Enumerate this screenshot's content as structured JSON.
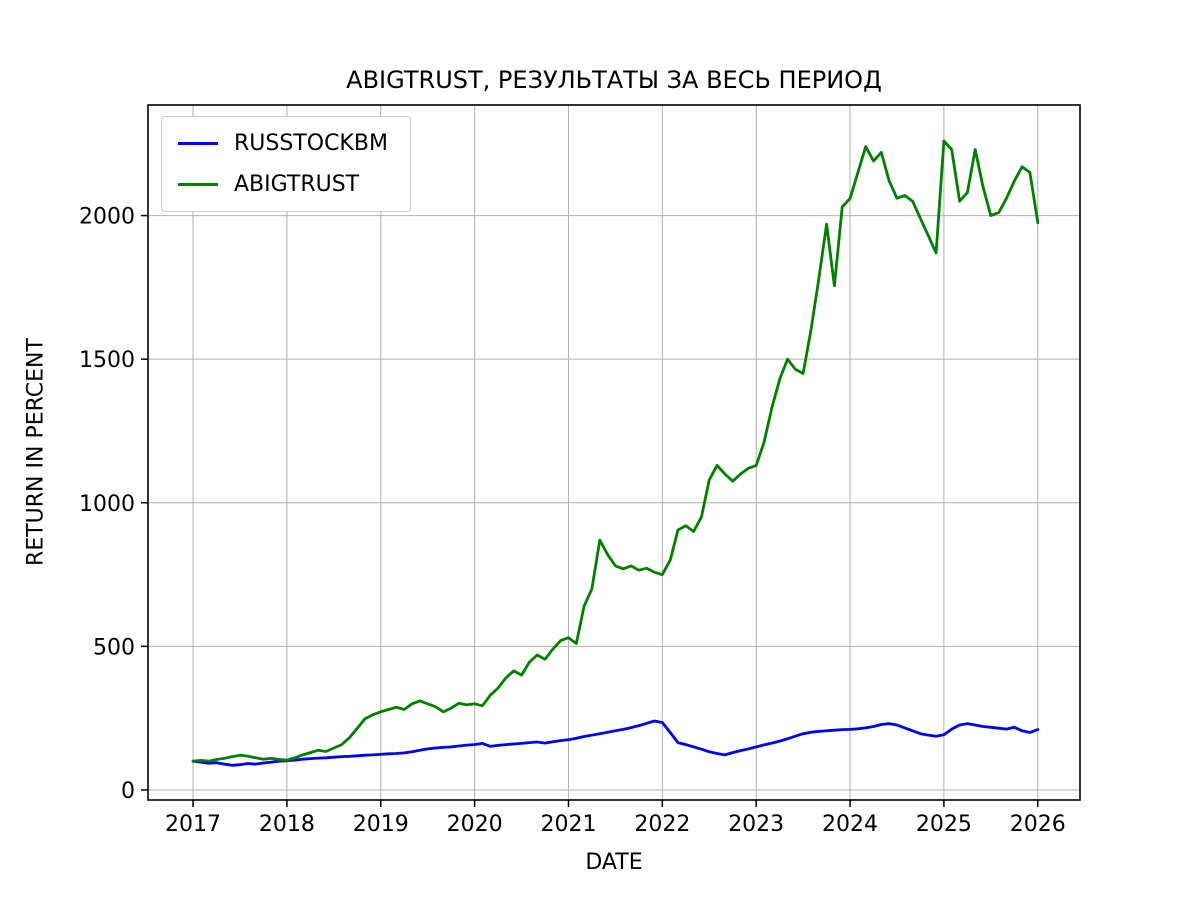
{
  "chart_data": {
    "type": "line",
    "title": "ABIGTRUST, РЕЗУЛЬТАТЫ ЗА ВЕСЬ ПЕРИОД",
    "xlabel": "DATE",
    "ylabel": "RETURN IN PERCENT",
    "grid": true,
    "legend_position": "upper left",
    "x_start_year": 2017,
    "x_interval_months": 1,
    "x_ticks": [
      2017,
      2018,
      2019,
      2020,
      2021,
      2022,
      2023,
      2024,
      2025,
      2026
    ],
    "y_ticks": [
      0,
      500,
      1000,
      1500,
      2000
    ],
    "xlim": [
      2016.52,
      2026.45
    ],
    "ylim": [
      -35,
      2385
    ],
    "series": [
      {
        "name": "RUSSTOCKBM",
        "color": "#0000ff",
        "values": [
          100,
          97,
          93,
          95,
          90,
          86,
          88,
          92,
          90,
          94,
          97,
          100,
          102,
          104,
          107,
          109,
          111,
          112,
          114,
          116,
          117,
          119,
          121,
          122,
          124,
          126,
          127,
          129,
          133,
          138,
          143,
          146,
          148,
          150,
          153,
          156,
          158,
          162,
          152,
          155,
          158,
          160,
          162,
          165,
          167,
          163,
          168,
          172,
          175,
          180,
          186,
          191,
          196,
          201,
          206,
          211,
          217,
          224,
          232,
          240,
          235,
          200,
          165,
          158,
          150,
          142,
          133,
          127,
          122,
          130,
          137,
          143,
          150,
          157,
          163,
          170,
          178,
          187,
          196,
          201,
          204,
          206,
          208,
          210,
          211,
          213,
          216,
          221,
          228,
          231,
          226,
          216,
          206,
          196,
          191,
          187,
          192,
          212,
          226,
          231,
          226,
          221,
          218,
          215,
          212,
          218,
          206,
          200,
          210
        ]
      },
      {
        "name": "ABIGTRUST",
        "color": "#008000",
        "values": [
          100,
          103,
          100,
          106,
          110,
          116,
          121,
          118,
          112,
          107,
          110,
          106,
          104,
          112,
          122,
          130,
          138,
          134,
          146,
          158,
          182,
          215,
          248,
          262,
          272,
          280,
          288,
          280,
          300,
          310,
          300,
          290,
          272,
          285,
          302,
          296,
          300,
          293,
          330,
          355,
          390,
          415,
          400,
          445,
          470,
          455,
          490,
          520,
          530,
          510,
          640,
          700,
          870,
          820,
          780,
          770,
          780,
          765,
          772,
          758,
          750,
          800,
          905,
          920,
          900,
          950,
          1080,
          1130,
          1100,
          1075,
          1100,
          1120,
          1130,
          1210,
          1330,
          1430,
          1500,
          1465,
          1450,
          1600,
          1780,
          1970,
          1755,
          2030,
          2060,
          2150,
          2240,
          2190,
          2220,
          2120,
          2060,
          2070,
          2050,
          1990,
          1930,
          1870,
          2260,
          2230,
          2050,
          2080,
          2230,
          2100,
          2000,
          2010,
          2060,
          2120,
          2170,
          2150,
          1975
        ]
      }
    ]
  }
}
